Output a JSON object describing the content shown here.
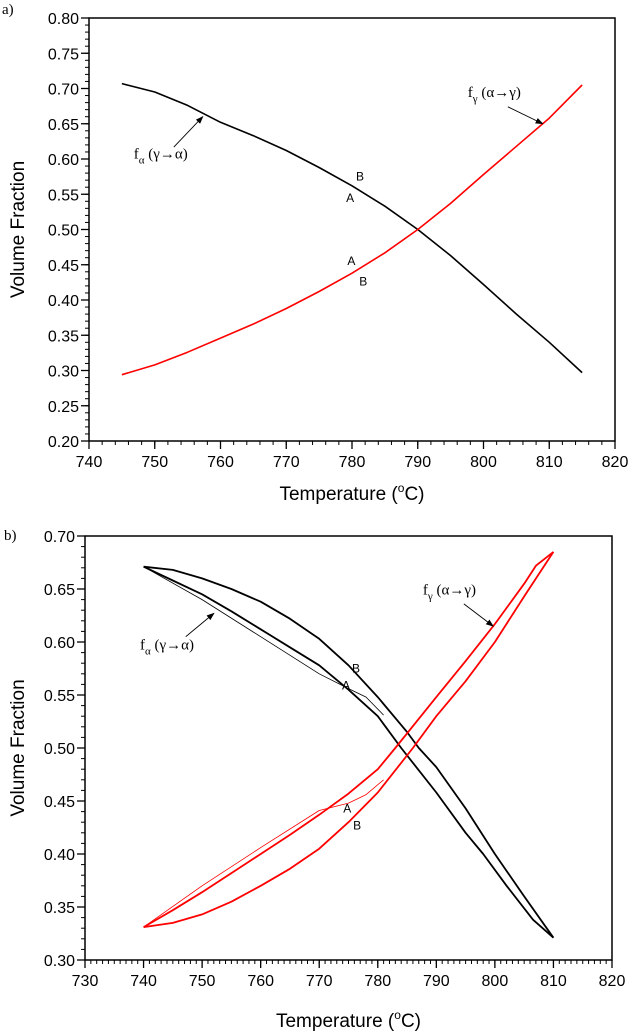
{
  "chart_data": [
    {
      "type": "line",
      "panel_label": "a)",
      "xlabel": "Temperature (",
      "xlabel_sup": "o",
      "xlabel_unit": "C)",
      "ylabel": "Volume Fraction",
      "xlim": [
        740,
        820
      ],
      "ylim": [
        0.2,
        0.8
      ],
      "xticks": [
        740,
        750,
        760,
        770,
        780,
        790,
        800,
        810,
        820
      ],
      "xtick_labels": [
        "740",
        "750",
        "760",
        "770",
        "780",
        "790",
        "800",
        "810",
        "820"
      ],
      "yticks": [
        0.2,
        0.25,
        0.3,
        0.35,
        0.4,
        0.45,
        0.5,
        0.55,
        0.6,
        0.65,
        0.7,
        0.75,
        0.8
      ],
      "ytick_labels": [
        "0.20",
        "0.25",
        "0.30",
        "0.35",
        "0.40",
        "0.45",
        "0.50",
        "0.55",
        "0.60",
        "0.65",
        "0.70",
        "0.75",
        "0.80"
      ],
      "x_minor_step": 2,
      "y_minor_step": 0.01,
      "grid": false,
      "series": [
        {
          "name": "f_alpha (gamma->alpha)",
          "color": "#000000",
          "width": 1.6,
          "x": [
            745,
            750,
            755,
            760,
            765,
            770,
            775,
            780,
            785,
            790,
            795,
            800,
            805,
            810,
            815
          ],
          "y": [
            0.707,
            0.695,
            0.676,
            0.652,
            0.633,
            0.612,
            0.588,
            0.562,
            0.533,
            0.5,
            0.463,
            0.422,
            0.38,
            0.34,
            0.297
          ]
        },
        {
          "name": "f_gamma (alpha->gamma)",
          "color": "#ff0000",
          "width": 1.6,
          "x": [
            745,
            750,
            755,
            760,
            765,
            770,
            775,
            780,
            785,
            790,
            795,
            800,
            805,
            810,
            815
          ],
          "y": [
            0.294,
            0.308,
            0.326,
            0.346,
            0.366,
            0.388,
            0.412,
            0.438,
            0.467,
            0.5,
            0.537,
            0.578,
            0.618,
            0.658,
            0.705
          ]
        }
      ],
      "annotations": [
        {
          "text": "f",
          "sub": "α",
          "rest": " (γ→α)",
          "x": 746.8,
          "y": 0.601,
          "arrow": [
            [
              752.9,
              0.617
            ],
            [
              757.3,
              0.66
            ]
          ]
        },
        {
          "text": "f",
          "sub": "γ",
          "rest": " (α→γ)",
          "x": 797.6,
          "y": 0.688,
          "arrow": [
            [
              803.7,
              0.674
            ],
            [
              809.0,
              0.65
            ]
          ]
        }
      ],
      "point_labels": [
        {
          "text": "B",
          "x": 780.6,
          "y": 0.575
        },
        {
          "text": "A",
          "x": 779.1,
          "y": 0.545
        },
        {
          "text": "A",
          "x": 779.3,
          "y": 0.455
        },
        {
          "text": "B",
          "x": 781.1,
          "y": 0.426
        }
      ]
    },
    {
      "type": "line",
      "panel_label": "b)",
      "xlabel": "Temperature (",
      "xlabel_sup": "o",
      "xlabel_unit": "C)",
      "ylabel": "Volume Fraction",
      "xlim": [
        730,
        820
      ],
      "ylim": [
        0.3,
        0.7
      ],
      "xticks": [
        730,
        740,
        750,
        760,
        770,
        780,
        790,
        800,
        810,
        820
      ],
      "xtick_labels": [
        "730",
        "740",
        "750",
        "760",
        "770",
        "780",
        "790",
        "800",
        "810",
        "820"
      ],
      "yticks": [
        0.3,
        0.35,
        0.4,
        0.45,
        0.5,
        0.55,
        0.6,
        0.65,
        0.7
      ],
      "ytick_labels": [
        "0.30",
        "0.35",
        "0.40",
        "0.45",
        "0.50",
        "0.55",
        "0.60",
        "0.65",
        "0.70"
      ],
      "x_minor_step": 1,
      "y_minor_step": 0.01,
      "grid": false,
      "series": [
        {
          "name": "f_alpha upper branch",
          "color": "#000000",
          "width": 1.8,
          "x": [
            740,
            745,
            750,
            755,
            760,
            765,
            770,
            775,
            780,
            785,
            787,
            790,
            795,
            800,
            805,
            810
          ],
          "y": [
            0.671,
            0.668,
            0.66,
            0.65,
            0.638,
            0.622,
            0.603,
            0.578,
            0.548,
            0.515,
            0.5,
            0.482,
            0.443,
            0.4,
            0.36,
            0.321
          ]
        },
        {
          "name": "f_alpha lower branch",
          "color": "#000000",
          "width": 1.8,
          "x": [
            740,
            745,
            750,
            755,
            760,
            765,
            770,
            775,
            780,
            784,
            790,
            795,
            798,
            802,
            806.5,
            810
          ],
          "y": [
            0.671,
            0.658,
            0.645,
            0.629,
            0.612,
            0.595,
            0.578,
            0.555,
            0.53,
            0.5,
            0.458,
            0.42,
            0.4,
            0.37,
            0.338,
            0.321
          ]
        },
        {
          "name": "f_alpha minor path A",
          "color": "#000000",
          "width": 0.8,
          "x": [
            740,
            750,
            760,
            770,
            775,
            778,
            781
          ],
          "y": [
            0.671,
            0.64,
            0.605,
            0.57,
            0.556,
            0.548,
            0.531
          ]
        },
        {
          "name": "f_gamma lower branch",
          "color": "#ff0000",
          "width": 1.8,
          "x": [
            740,
            745,
            750,
            755,
            760,
            765,
            770,
            775,
            780,
            786,
            790,
            795,
            800,
            805,
            810
          ],
          "y": [
            0.331,
            0.335,
            0.343,
            0.355,
            0.37,
            0.386,
            0.405,
            0.43,
            0.458,
            0.5,
            0.53,
            0.563,
            0.6,
            0.643,
            0.685
          ]
        },
        {
          "name": "f_gamma upper branch",
          "color": "#ff0000",
          "width": 1.8,
          "x": [
            740,
            745,
            750,
            755,
            760,
            765,
            770,
            775,
            780,
            783,
            790,
            795,
            800,
            805,
            807,
            810
          ],
          "y": [
            0.331,
            0.347,
            0.364,
            0.382,
            0.4,
            0.418,
            0.437,
            0.457,
            0.48,
            0.5,
            0.548,
            0.582,
            0.617,
            0.655,
            0.672,
            0.685
          ]
        },
        {
          "name": "f_gamma minor path A",
          "color": "#ff0000",
          "width": 0.8,
          "x": [
            740,
            750,
            760,
            770,
            775,
            778,
            781
          ],
          "y": [
            0.331,
            0.37,
            0.406,
            0.441,
            0.448,
            0.456,
            0.47
          ]
        }
      ],
      "annotations": [
        {
          "text": "f",
          "sub": "α",
          "rest": " (γ→α)",
          "x": 739.4,
          "y": 0.593,
          "arrow": [
            [
              747.2,
              0.605
            ],
            [
              752.0,
              0.627
            ]
          ]
        },
        {
          "text": "f",
          "sub": "γ",
          "rest": " (α→γ)",
          "x": 787.7,
          "y": 0.645,
          "arrow": [
            [
              794.7,
              0.636
            ],
            [
              799.7,
              0.615
            ]
          ]
        }
      ],
      "point_labels": [
        {
          "text": "B",
          "x": 775.6,
          "y": 0.575
        },
        {
          "text": "A",
          "x": 773.9,
          "y": 0.559
        },
        {
          "text": "A",
          "x": 774.1,
          "y": 0.443
        },
        {
          "text": "B",
          "x": 775.8,
          "y": 0.427
        }
      ]
    }
  ]
}
